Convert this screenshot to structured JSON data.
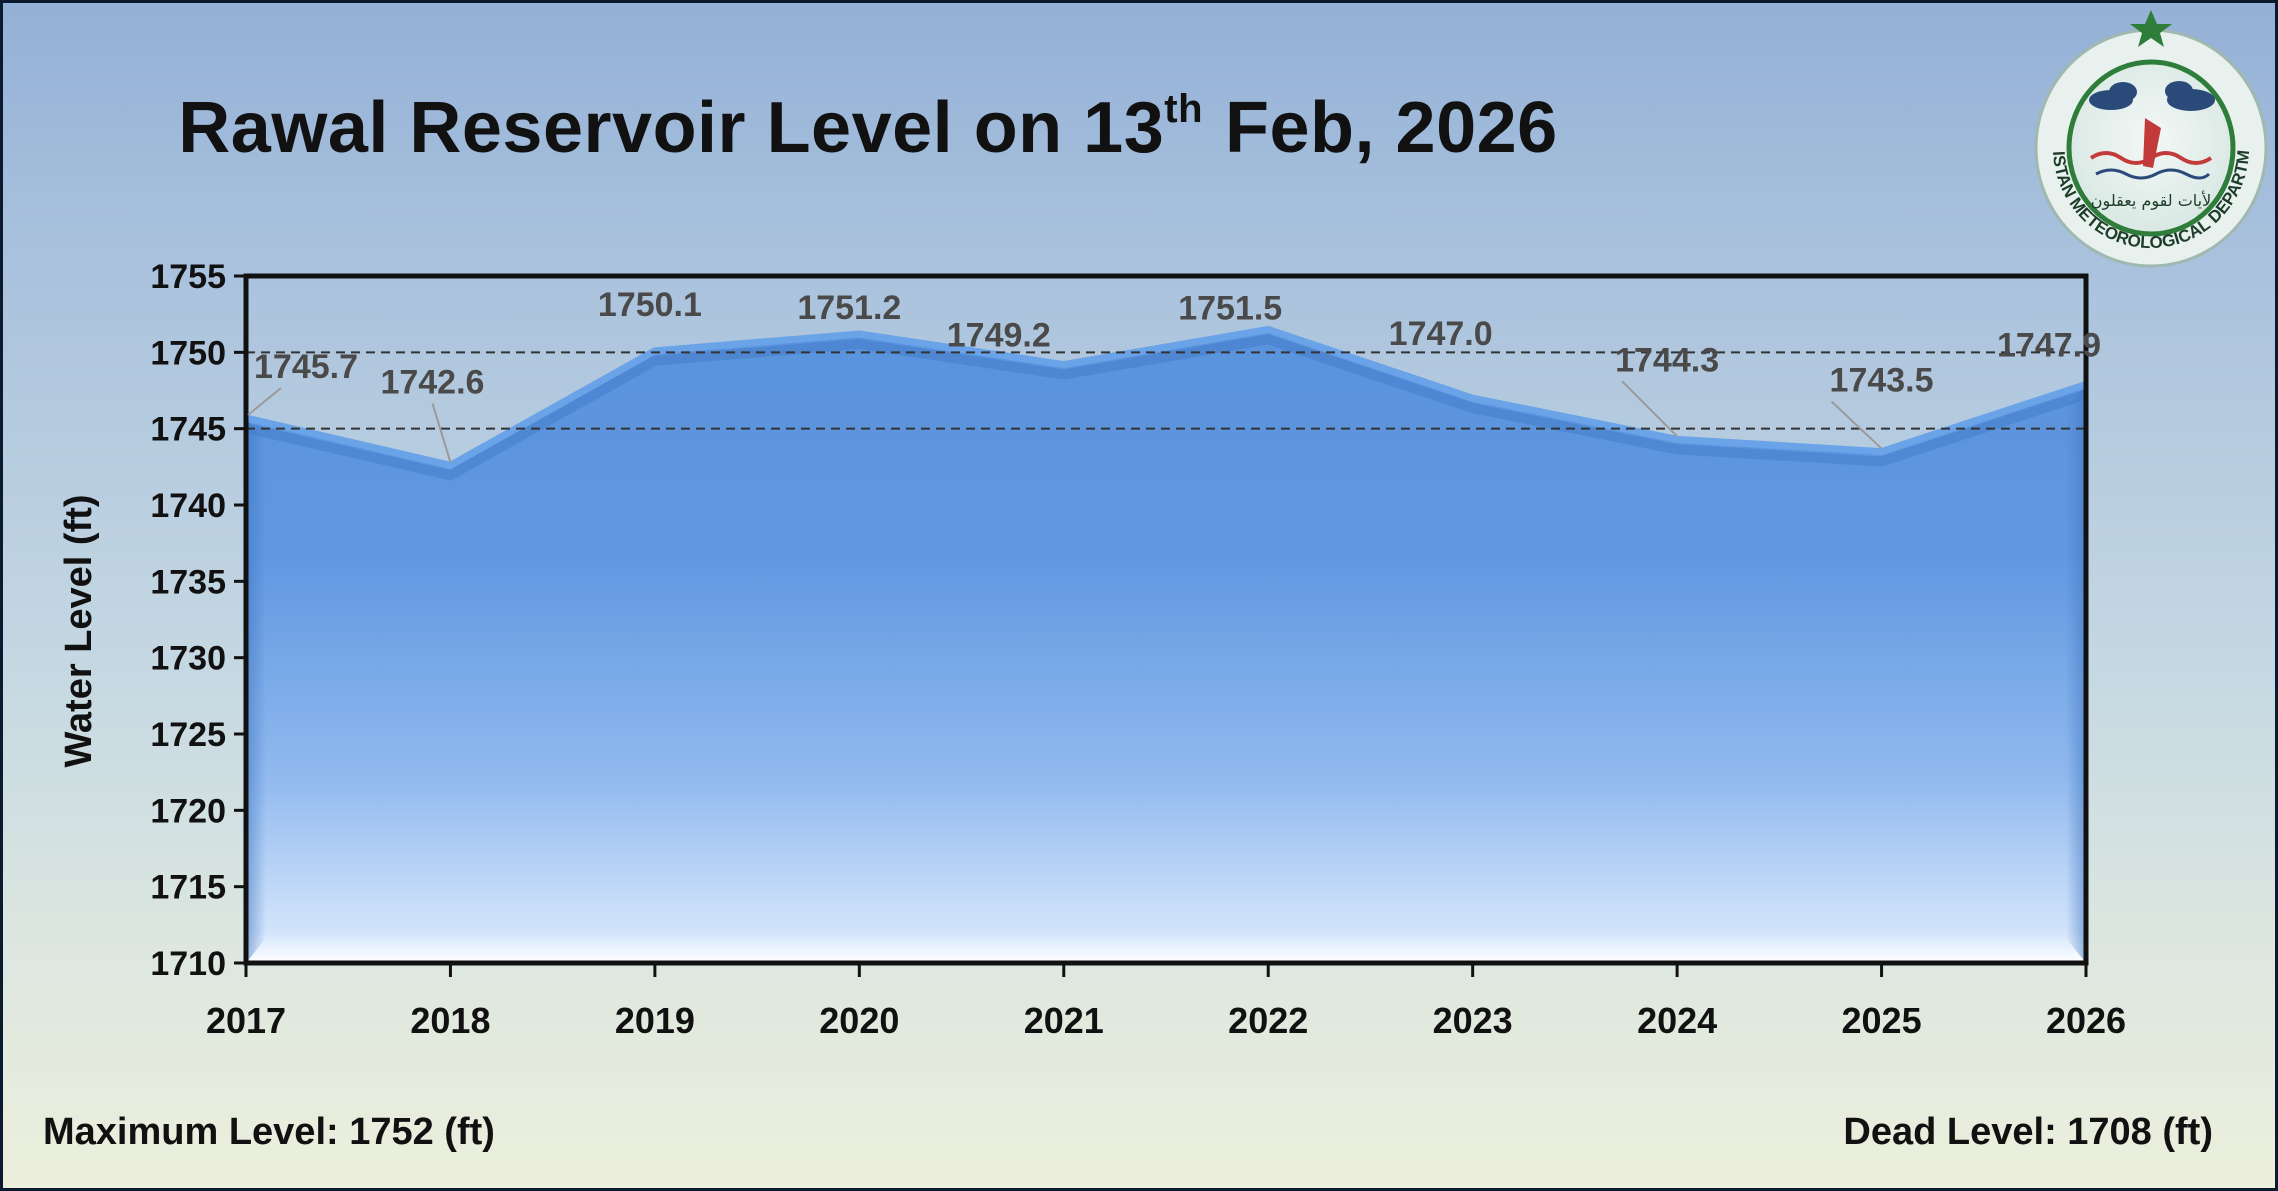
{
  "title": {
    "main": "Rawal Reservoir Level on 13",
    "superscript": "th",
    "rest": "Feb, 2026"
  },
  "logo": {
    "text": "PAKISTAN METEOROLOGICAL DEPARTMENT",
    "urdu": "لأيات لقوم يعقلون",
    "colors": {
      "ring": "#2f7d3a",
      "inner": "#e6f1ee",
      "accent": "#c33a3a",
      "star": "#2f7d3a"
    }
  },
  "footer": {
    "max_level": "Maximum Level: 1752 (ft)",
    "dead_level": "Dead Level: 1708 (ft)"
  },
  "chart_data": {
    "type": "area",
    "categories": [
      "2017",
      "2018",
      "2019",
      "2020",
      "2021",
      "2022",
      "2023",
      "2024",
      "2025",
      "2026"
    ],
    "values": [
      1745.7,
      1742.6,
      1750.1,
      1751.2,
      1749.2,
      1751.5,
      1747.0,
      1744.3,
      1743.5,
      1747.9
    ],
    "data_labels": [
      "1745.7",
      "1742.6",
      "1750.1",
      "1751.2",
      "1749.2",
      "1751.5",
      "1747.0",
      "1744.3",
      "1743.5",
      "1747.9"
    ],
    "ylabel": "Water Level (ft)",
    "xlabel": "",
    "ylim": [
      1710,
      1755
    ],
    "yticks": [
      1710,
      1715,
      1720,
      1725,
      1730,
      1735,
      1740,
      1745,
      1750,
      1755
    ],
    "reference_lines": [
      1745,
      1750
    ],
    "grid": false,
    "colors": {
      "fill_top": "#5b95de",
      "fill_bottom": "#ffffff",
      "line": "#6aa3e8",
      "axis": "#111111",
      "reference": "#333333"
    }
  }
}
